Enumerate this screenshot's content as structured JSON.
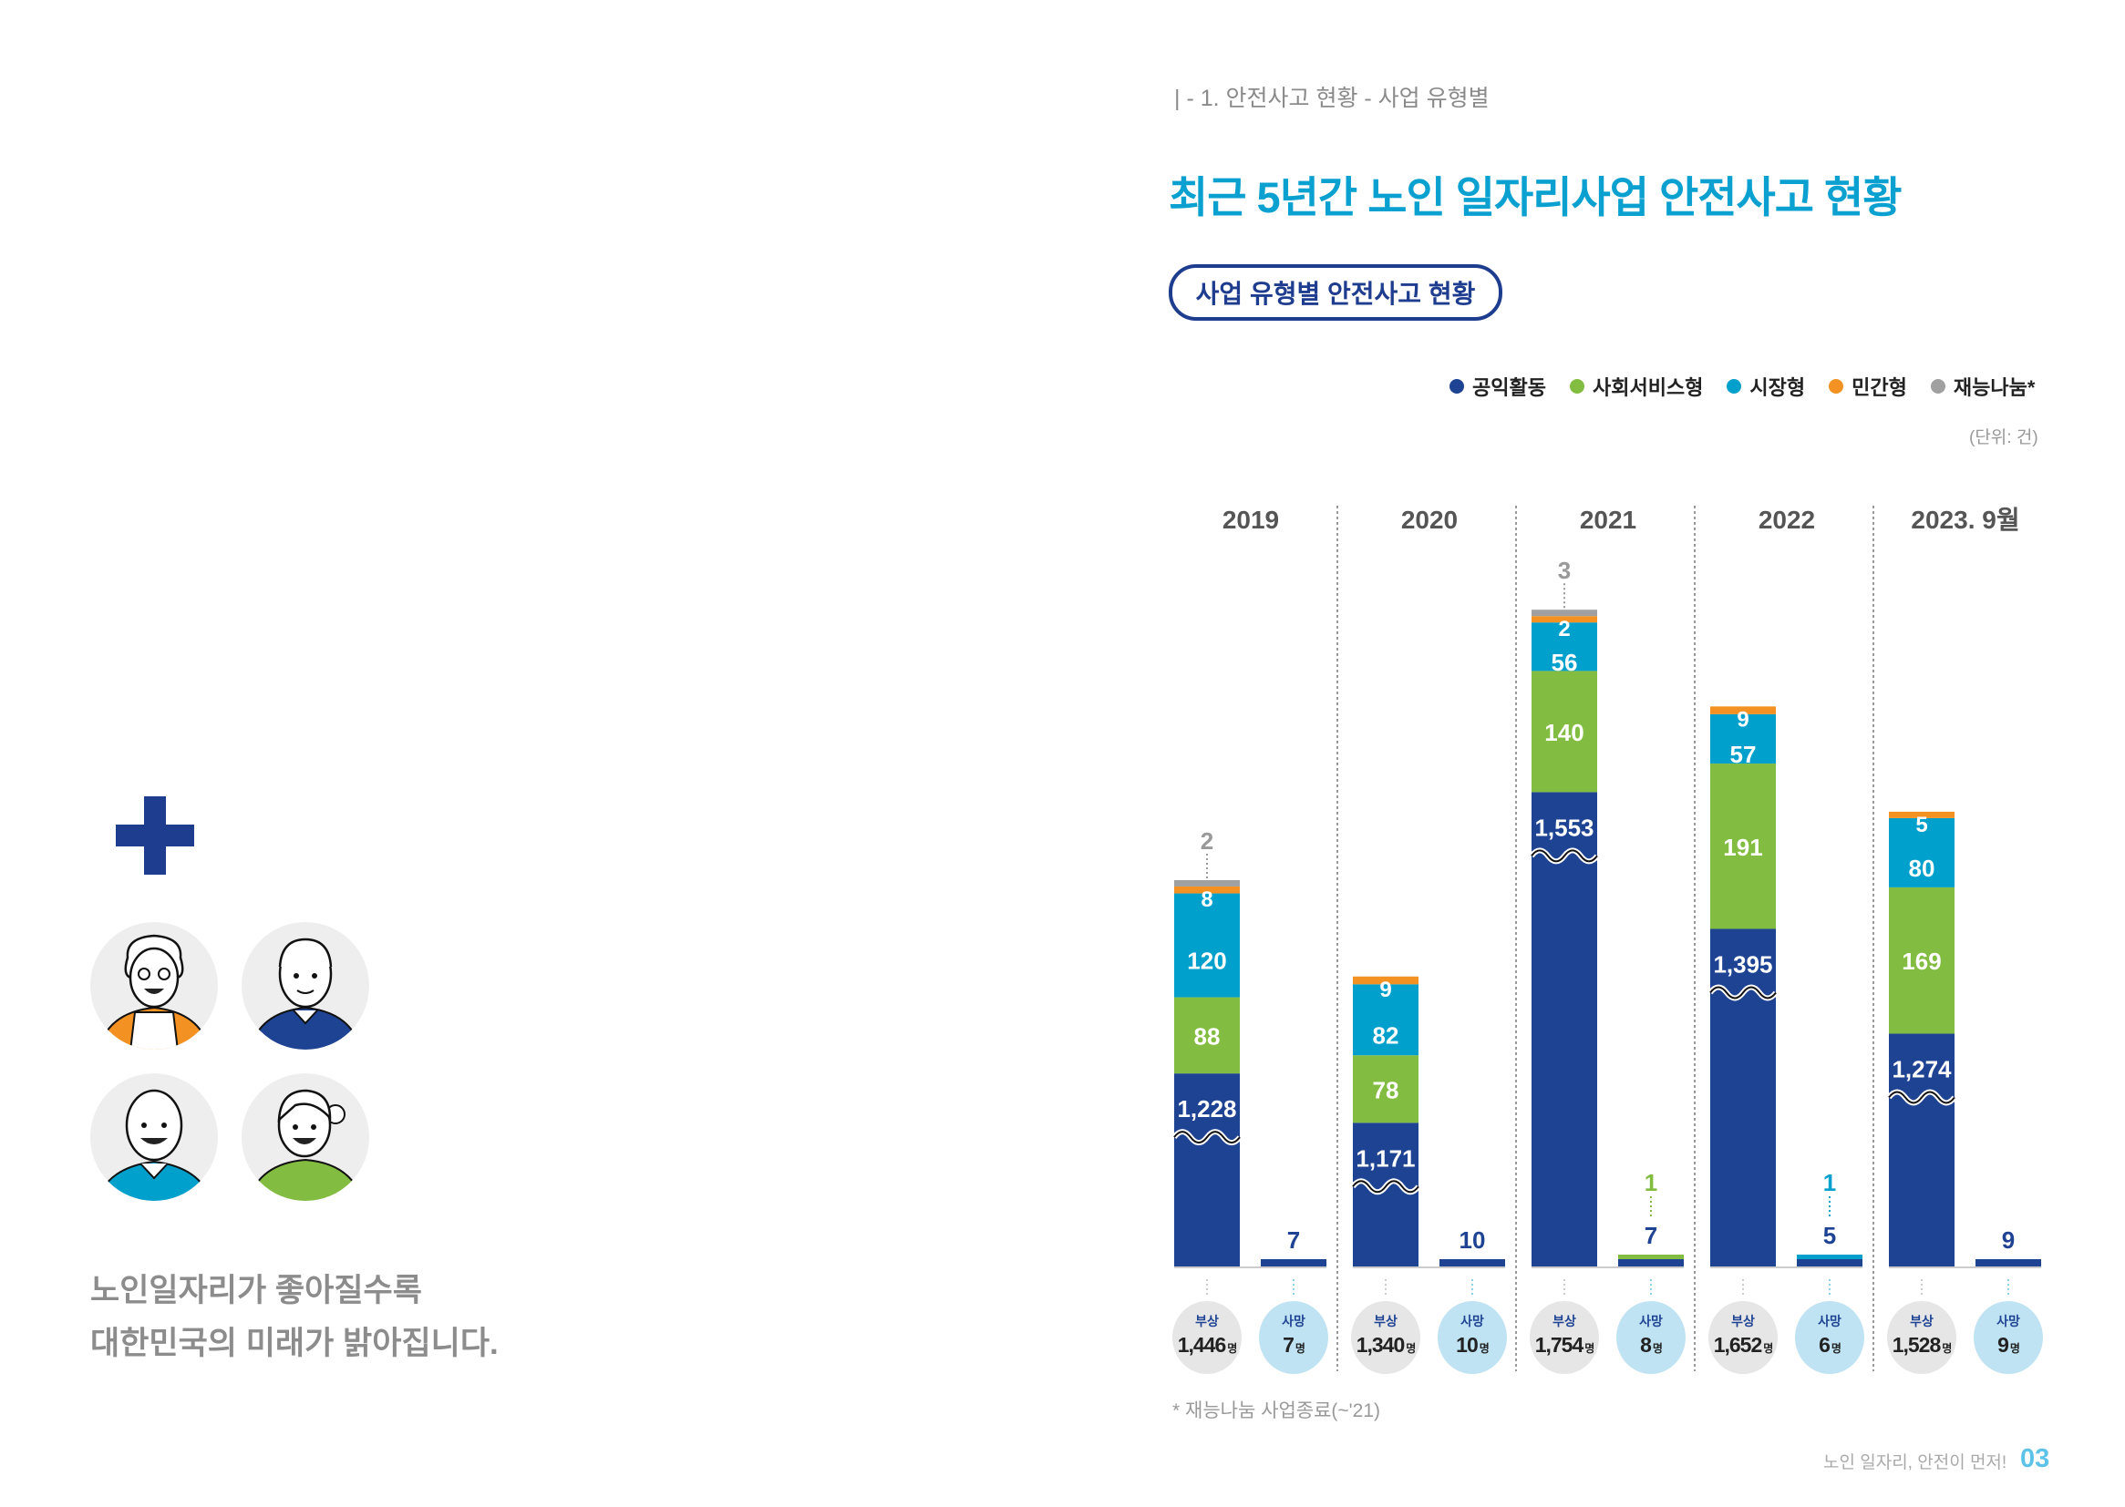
{
  "breadcrumb": "| - 1. 안전사고 현황 - 사업 유형별",
  "title": "최근 5년간 노인 일자리사업 안전사고 현황",
  "section_pill": "사업 유형별 안전사고 현황",
  "unit": "(단위: 건)",
  "footnote": "* 재능나눔 사업종료(~'21)",
  "footer_text": "노인 일자리, 안전이 먼저!",
  "page_number": "03",
  "slogan": [
    "노인일자리가 좋아질수록",
    "대한민국의 미래가 밝아집니다."
  ],
  "colors": {
    "navy": "#1f4393",
    "green": "#82bd41",
    "cyan": "#00a0cc",
    "orange": "#f39222",
    "gray": "#a0a0a0",
    "title": "#0aa0d0"
  },
  "chart_data": {
    "type": "bar",
    "stacked": true,
    "title": "사업 유형별 안전사고 현황",
    "unit": "건",
    "legend_position": "top-right",
    "legend": [
      "공익활동",
      "사회서비스형",
      "시장형",
      "민간형",
      "재능나눔*"
    ],
    "series_colors": [
      "#1f4393",
      "#82bd41",
      "#00a0cc",
      "#f39222",
      "#a0a0a0"
    ],
    "categories": [
      "2019",
      "2020",
      "2021",
      "2022",
      "2023. 9월"
    ],
    "axis_break": "공익활동 bars are shown with a broken axis",
    "injury": {
      "label": "부상",
      "series": [
        {
          "name": "공익활동",
          "values": [
            1228,
            1171,
            1553,
            1395,
            1274
          ]
        },
        {
          "name": "사회서비스형",
          "values": [
            88,
            78,
            140,
            191,
            169
          ]
        },
        {
          "name": "시장형",
          "values": [
            120,
            82,
            56,
            57,
            80
          ]
        },
        {
          "name": "민간형",
          "values": [
            8,
            9,
            2,
            9,
            5
          ]
        },
        {
          "name": "재능나눔*",
          "values": [
            2,
            0,
            3,
            0,
            0
          ]
        }
      ],
      "totals": [
        1446,
        1340,
        1754,
        1652,
        1528
      ]
    },
    "death": {
      "label": "사망",
      "series": [
        {
          "name": "공익활동",
          "values": [
            7,
            10,
            7,
            5,
            9
          ]
        },
        {
          "name": "사회서비스형",
          "values": [
            0,
            0,
            1,
            0,
            0
          ]
        },
        {
          "name": "시장형",
          "values": [
            0,
            0,
            0,
            1,
            0
          ]
        },
        {
          "name": "민간형",
          "values": [
            0,
            0,
            0,
            0,
            0
          ]
        },
        {
          "name": "재능나눔*",
          "values": [
            0,
            0,
            0,
            0,
            0
          ]
        }
      ],
      "totals": [
        7,
        10,
        8,
        6,
        9
      ]
    },
    "count_suffix": "명"
  }
}
